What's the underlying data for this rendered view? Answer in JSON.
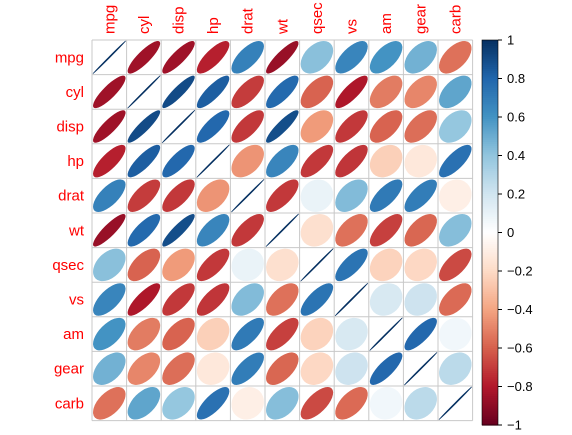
{
  "chart_data": {
    "type": "heatmap",
    "title": "",
    "variables": [
      "mpg",
      "cyl",
      "disp",
      "hp",
      "drat",
      "wt",
      "qsec",
      "vs",
      "am",
      "gear",
      "carb"
    ],
    "matrix": [
      [
        1.0,
        -0.85,
        -0.85,
        -0.78,
        0.68,
        -0.87,
        0.42,
        0.66,
        0.6,
        0.48,
        -0.55
      ],
      [
        -0.85,
        1.0,
        0.9,
        0.83,
        -0.7,
        0.78,
        -0.59,
        -0.81,
        -0.52,
        -0.49,
        0.53
      ],
      [
        -0.85,
        0.9,
        1.0,
        0.79,
        -0.71,
        0.89,
        -0.43,
        -0.71,
        -0.59,
        -0.56,
        0.39
      ],
      [
        -0.78,
        0.83,
        0.79,
        1.0,
        -0.45,
        0.66,
        -0.71,
        -0.72,
        -0.24,
        -0.13,
        0.75
      ],
      [
        0.68,
        -0.7,
        -0.71,
        -0.45,
        1.0,
        -0.71,
        0.09,
        0.44,
        0.71,
        0.7,
        -0.09
      ],
      [
        -0.87,
        0.78,
        0.89,
        0.66,
        -0.71,
        1.0,
        -0.17,
        -0.55,
        -0.69,
        -0.58,
        0.43
      ],
      [
        0.42,
        -0.59,
        -0.43,
        -0.71,
        0.09,
        -0.17,
        1.0,
        0.74,
        -0.23,
        -0.21,
        -0.66
      ],
      [
        0.66,
        -0.81,
        -0.71,
        -0.72,
        0.44,
        -0.55,
        0.74,
        1.0,
        0.17,
        0.21,
        -0.57
      ],
      [
        0.6,
        -0.52,
        -0.59,
        -0.24,
        0.71,
        -0.69,
        -0.23,
        0.17,
        1.0,
        0.79,
        0.06
      ],
      [
        0.48,
        -0.49,
        -0.56,
        -0.13,
        0.7,
        -0.58,
        -0.21,
        0.21,
        0.79,
        1.0,
        0.27
      ],
      [
        -0.55,
        0.53,
        0.39,
        0.75,
        -0.09,
        0.43,
        -0.66,
        -0.57,
        0.06,
        0.27,
        1.0
      ]
    ],
    "colorbar": {
      "range": [
        -1,
        1
      ],
      "ticks": [
        "1",
        "0.8",
        "0.6",
        "0.4",
        "0.2",
        "0",
        "−0.2",
        "−0.4",
        "−0.6",
        "−0.8",
        "−1"
      ],
      "tick_values": [
        1,
        0.8,
        0.6,
        0.4,
        0.2,
        0,
        -0.2,
        -0.4,
        -0.6,
        -0.8,
        -1
      ],
      "placement": "right"
    },
    "palette": {
      "negative_end": "#67001f",
      "stops": [
        "#67001f",
        "#b2182b",
        "#d6604d",
        "#f4a582",
        "#fddbc7",
        "#ffffff",
        "#d1e5f0",
        "#92c5de",
        "#4393c3",
        "#2166ac",
        "#053061"
      ],
      "positive_end": "#053061"
    },
    "label_color": "#ff0000",
    "grid_color": "#c8c8c8",
    "method": "ellipse"
  }
}
